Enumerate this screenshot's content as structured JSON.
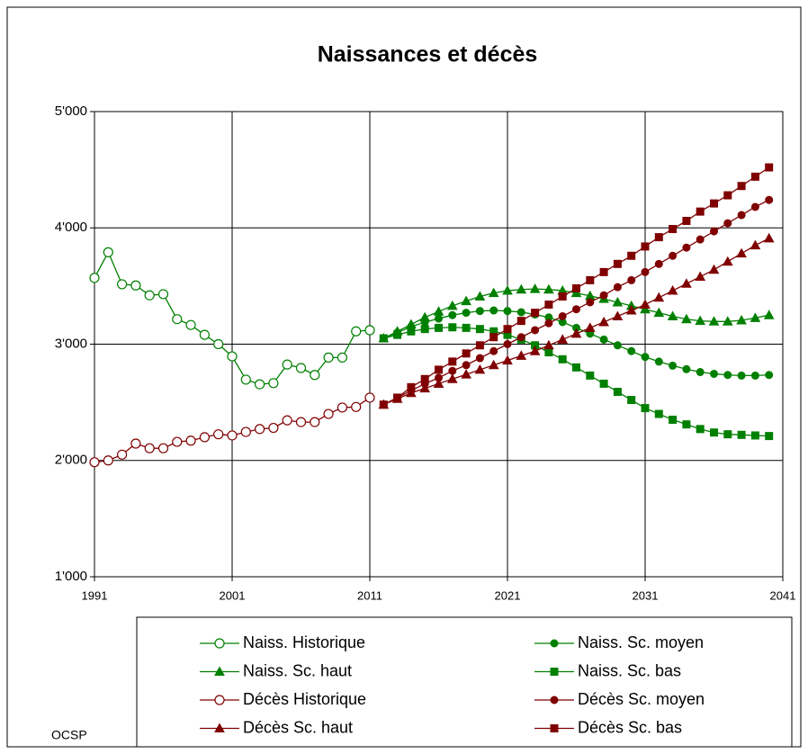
{
  "chart_data": {
    "type": "line",
    "title": "Naissances et décès",
    "annotation": "OCSP",
    "x": [
      1991,
      1992,
      1993,
      1994,
      1995,
      1996,
      1997,
      1998,
      1999,
      2000,
      2001,
      2002,
      2003,
      2004,
      2005,
      2006,
      2007,
      2008,
      2009,
      2010,
      2011,
      2012,
      2013,
      2014,
      2015,
      2016,
      2017,
      2018,
      2019,
      2020,
      2021,
      2022,
      2023,
      2024,
      2025,
      2026,
      2027,
      2028,
      2029,
      2030,
      2031,
      2032,
      2033,
      2034,
      2035,
      2036,
      2037,
      2038,
      2039,
      2040
    ],
    "xlim": [
      1991,
      2041
    ],
    "xticks": [
      1991,
      2001,
      2011,
      2021,
      2031,
      2041
    ],
    "ylim": [
      1000,
      5000
    ],
    "yticks": [
      {
        "value": 1000,
        "label": "1'000"
      },
      {
        "value": 2000,
        "label": "2'000"
      },
      {
        "value": 3000,
        "label": "3'000"
      },
      {
        "value": 4000,
        "label": "4'000"
      },
      {
        "value": 5000,
        "label": "5'000"
      }
    ],
    "grid": true,
    "series": [
      {
        "name": "Naiss. Historique",
        "color": "#008000",
        "marker": "circle-open",
        "values": [
          3570,
          3790,
          3515,
          3505,
          3420,
          3430,
          3215,
          3165,
          3080,
          3000,
          2895,
          2695,
          2655,
          2665,
          2825,
          2795,
          2735,
          2885,
          2885,
          3110,
          3120,
          null,
          null,
          null,
          null,
          null,
          null,
          null,
          null,
          null,
          null,
          null,
          null,
          null,
          null,
          null,
          null,
          null,
          null,
          null,
          null,
          null,
          null,
          null,
          null,
          null,
          null,
          null,
          null,
          null
        ]
      },
      {
        "name": "Naiss. Sc. moyen",
        "color": "#008000",
        "marker": "circle",
        "values": [
          null,
          null,
          null,
          null,
          null,
          null,
          null,
          null,
          null,
          null,
          null,
          null,
          null,
          null,
          null,
          null,
          null,
          null,
          null,
          null,
          null,
          3050,
          3100,
          3150,
          3190,
          3220,
          3250,
          3270,
          3285,
          3290,
          3285,
          3275,
          3255,
          3230,
          3190,
          3140,
          3090,
          3040,
          2990,
          2940,
          2890,
          2850,
          2815,
          2785,
          2760,
          2745,
          2735,
          2730,
          2730,
          2735
        ]
      },
      {
        "name": "Naiss. Sc. haut",
        "color": "#008000",
        "marker": "triangle",
        "values": [
          null,
          null,
          null,
          null,
          null,
          null,
          null,
          null,
          null,
          null,
          null,
          null,
          null,
          null,
          null,
          null,
          null,
          null,
          null,
          null,
          null,
          3050,
          3110,
          3170,
          3230,
          3280,
          3330,
          3370,
          3410,
          3440,
          3460,
          3470,
          3475,
          3470,
          3460,
          3440,
          3415,
          3390,
          3360,
          3330,
          3300,
          3270,
          3240,
          3215,
          3200,
          3195,
          3195,
          3205,
          3225,
          3250
        ]
      },
      {
        "name": "Naiss. Sc. bas",
        "color": "#008000",
        "marker": "square",
        "values": [
          null,
          null,
          null,
          null,
          null,
          null,
          null,
          null,
          null,
          null,
          null,
          null,
          null,
          null,
          null,
          null,
          null,
          null,
          null,
          null,
          null,
          3050,
          3080,
          3110,
          3130,
          3140,
          3145,
          3140,
          3130,
          3110,
          3080,
          3040,
          2990,
          2930,
          2870,
          2800,
          2730,
          2660,
          2590,
          2520,
          2450,
          2400,
          2350,
          2310,
          2270,
          2240,
          2225,
          2220,
          2215,
          2210
        ]
      },
      {
        "name": "Décès Historique",
        "color": "#800000",
        "marker": "circle-open",
        "values": [
          1985,
          2000,
          2050,
          2145,
          2105,
          2105,
          2160,
          2170,
          2200,
          2225,
          2215,
          2245,
          2270,
          2280,
          2345,
          2330,
          2330,
          2400,
          2455,
          2460,
          2540,
          null,
          null,
          null,
          null,
          null,
          null,
          null,
          null,
          null,
          null,
          null,
          null,
          null,
          null,
          null,
          null,
          null,
          null,
          null,
          null,
          null,
          null,
          null,
          null,
          null,
          null,
          null,
          null,
          null
        ]
      },
      {
        "name": "Décès Sc. moyen",
        "color": "#800000",
        "marker": "circle",
        "values": [
          null,
          null,
          null,
          null,
          null,
          null,
          null,
          null,
          null,
          null,
          null,
          null,
          null,
          null,
          null,
          null,
          null,
          null,
          null,
          null,
          null,
          2480,
          2540,
          2600,
          2660,
          2710,
          2770,
          2820,
          2880,
          2940,
          3000,
          3060,
          3120,
          3180,
          3240,
          3300,
          3360,
          3420,
          3490,
          3550,
          3620,
          3690,
          3760,
          3830,
          3900,
          3970,
          4040,
          4110,
          4180,
          4240
        ]
      },
      {
        "name": "Décès Sc. haut",
        "color": "#800000",
        "marker": "triangle",
        "values": [
          null,
          null,
          null,
          null,
          null,
          null,
          null,
          null,
          null,
          null,
          null,
          null,
          null,
          null,
          null,
          null,
          null,
          null,
          null,
          null,
          null,
          2480,
          2530,
          2580,
          2620,
          2660,
          2700,
          2740,
          2780,
          2820,
          2860,
          2900,
          2940,
          2990,
          3040,
          3090,
          3140,
          3190,
          3240,
          3290,
          3340,
          3400,
          3460,
          3520,
          3580,
          3640,
          3710,
          3780,
          3850,
          3910
        ]
      },
      {
        "name": "Décès Sc. bas",
        "color": "#800000",
        "marker": "square",
        "values": [
          null,
          null,
          null,
          null,
          null,
          null,
          null,
          null,
          null,
          null,
          null,
          null,
          null,
          null,
          null,
          null,
          null,
          null,
          null,
          null,
          null,
          2480,
          2540,
          2630,
          2700,
          2780,
          2850,
          2920,
          2990,
          3060,
          3130,
          3200,
          3270,
          3340,
          3410,
          3480,
          3550,
          3620,
          3690,
          3760,
          3840,
          3920,
          3990,
          4060,
          4140,
          4210,
          4280,
          4360,
          4440,
          4520
        ]
      }
    ]
  }
}
